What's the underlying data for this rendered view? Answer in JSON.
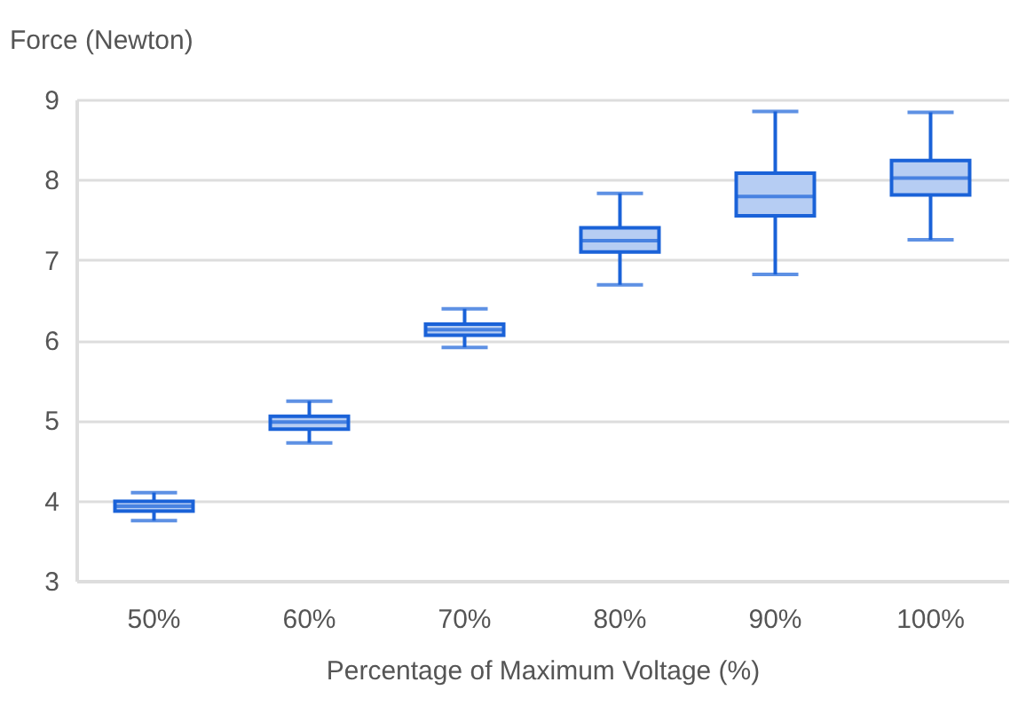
{
  "chart_data": {
    "type": "box",
    "xlabel": "Percentage of Maximum Voltage (%)",
    "ylabel": "Force (Newton)",
    "categories": [
      "50%",
      "60%",
      "70%",
      "80%",
      "90%",
      "100%"
    ],
    "series": [
      {
        "color": "#1a62d8",
        "boxes": [
          {
            "low": 3.75,
            "q1": 3.87,
            "median": 3.93,
            "q3": 3.99,
            "high": 4.1
          },
          {
            "low": 4.72,
            "q1": 4.89,
            "median": 4.98,
            "q3": 5.05,
            "high": 5.24
          },
          {
            "low": 5.91,
            "q1": 6.06,
            "median": 6.13,
            "q3": 6.2,
            "high": 6.39
          },
          {
            "low": 6.69,
            "q1": 7.1,
            "median": 7.24,
            "q3": 7.4,
            "high": 7.83
          },
          {
            "low": 6.82,
            "q1": 7.55,
            "median": 7.79,
            "q3": 8.08,
            "high": 8.85
          },
          {
            "low": 7.25,
            "q1": 7.81,
            "median": 8.02,
            "q3": 8.24,
            "high": 8.84
          }
        ]
      }
    ],
    "ylim": [
      3,
      9
    ],
    "yticks": [
      3,
      4,
      5,
      6,
      7,
      8,
      9
    ],
    "grid": "y"
  }
}
